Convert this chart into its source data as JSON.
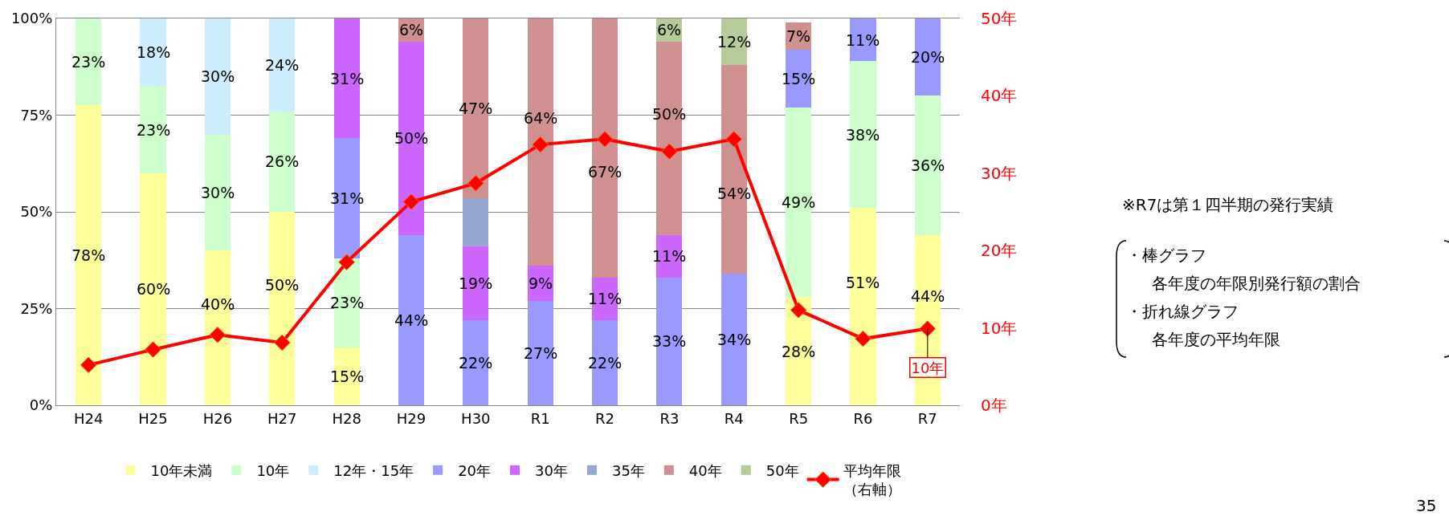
{
  "chart_data": {
    "type": "bar",
    "stacked": true,
    "categories": [
      "H24",
      "H25",
      "H26",
      "H27",
      "H28",
      "H29",
      "H30",
      "R1",
      "R2",
      "R3",
      "R4",
      "R5",
      "R6",
      "R7"
    ],
    "series": [
      {
        "name": "10年未満",
        "color": "#ffff99",
        "values": [
          77.5,
          60,
          40,
          50,
          15,
          0,
          0,
          0,
          0,
          0,
          0,
          28,
          51,
          44
        ],
        "value_labels": [
          "78%",
          "60%",
          "40%",
          "50%",
          "15%",
          null,
          null,
          null,
          null,
          null,
          null,
          "28%",
          "51%",
          "44%"
        ]
      },
      {
        "name": "10年",
        "color": "#ccffcc",
        "values": [
          22.5,
          22.5,
          30,
          26,
          23,
          0,
          0,
          0,
          0,
          0,
          0,
          49,
          38,
          36
        ],
        "value_labels": [
          "23%",
          "23%",
          "30%",
          "26%",
          "23%",
          null,
          null,
          null,
          null,
          null,
          null,
          "49%",
          "38%",
          "36%"
        ]
      },
      {
        "name": "12年・15年",
        "color": "#cceeff",
        "values": [
          0,
          17.5,
          30,
          24,
          0,
          0,
          0,
          0,
          0,
          0,
          0,
          0,
          0,
          0
        ],
        "value_labels": [
          null,
          "18%",
          "30%",
          "24%",
          null,
          null,
          null,
          null,
          null,
          null,
          null,
          null,
          null,
          null
        ]
      },
      {
        "name": "20年",
        "color": "#9999ff",
        "values": [
          0,
          0,
          0,
          0,
          31,
          44,
          22,
          27,
          22,
          33,
          34,
          15,
          11,
          20
        ],
        "value_labels": [
          null,
          null,
          null,
          null,
          "31%",
          "44%",
          "22%",
          "27%",
          "22%",
          "33%",
          "34%",
          "15%",
          "11%",
          "20%"
        ]
      },
      {
        "name": "30年",
        "color": "#cc66ff",
        "values": [
          0,
          0,
          0,
          0,
          31,
          50,
          19,
          9,
          11,
          11,
          0,
          0,
          0,
          0
        ],
        "value_labels": [
          null,
          null,
          null,
          null,
          "31%",
          "50%",
          "19%",
          "9%",
          "11%",
          "11%",
          null,
          null,
          null,
          null
        ]
      },
      {
        "name": "35年",
        "color": "#95a9d0",
        "values": [
          0,
          0,
          0,
          0,
          0,
          0,
          12.5,
          0,
          0,
          0,
          0,
          0,
          0,
          0
        ]
      },
      {
        "name": "40年",
        "color": "#d09090",
        "values": [
          0,
          0,
          0,
          0,
          0,
          6,
          46.5,
          64,
          67,
          50,
          54,
          7,
          0,
          0
        ],
        "value_labels": [
          null,
          null,
          null,
          null,
          null,
          "6%",
          "47%",
          "64%",
          "67%",
          "50%",
          "54%",
          "7%",
          null,
          null
        ]
      },
      {
        "name": "50年",
        "color": "#b5cc99",
        "values": [
          0,
          0,
          0,
          0,
          0,
          0,
          0,
          0,
          0,
          6,
          12,
          0,
          0,
          0
        ],
        "value_labels": [
          null,
          null,
          null,
          null,
          null,
          null,
          null,
          null,
          null,
          "6%",
          "12%",
          null,
          null,
          null
        ]
      },
      {
        "name": "平均年限（右軸）",
        "type": "line",
        "axis": "y2",
        "color": "#ff0000",
        "marker": "diamond",
        "values": [
          5.2,
          7.2,
          9.1,
          8.1,
          18.5,
          26.3,
          28.7,
          33.7,
          34.4,
          32.8,
          34.4,
          12.3,
          8.6,
          9.9
        ],
        "value_labels": [
          null,
          null,
          null,
          null,
          null,
          null,
          null,
          null,
          null,
          null,
          null,
          null,
          null,
          "10年"
        ]
      }
    ],
    "ylim": [
      0,
      100
    ],
    "yticks": [
      {
        "value": 0,
        "label": "0%"
      },
      {
        "value": 25,
        "label": "25%"
      },
      {
        "value": 50,
        "label": "50%"
      },
      {
        "value": 75,
        "label": "75%"
      },
      {
        "value": 100,
        "label": "100%"
      }
    ],
    "y2lim": [
      0,
      50
    ],
    "y2ticks": [
      {
        "value": 0,
        "label": "0年"
      },
      {
        "value": 10,
        "label": "10年"
      },
      {
        "value": 20,
        "label": "20年"
      },
      {
        "value": 30,
        "label": "30年"
      },
      {
        "value": 40,
        "label": "40年"
      },
      {
        "value": 50,
        "label": "50年"
      }
    ],
    "grid": "y",
    "legend": "bottom",
    "annotations": [
      "※R7は第１四半期の発行実績",
      "・棒グラフ",
      "各年度の年限別発行額の割合",
      "・折れ線グラフ",
      "各年度の平均年限",
      "35"
    ]
  }
}
